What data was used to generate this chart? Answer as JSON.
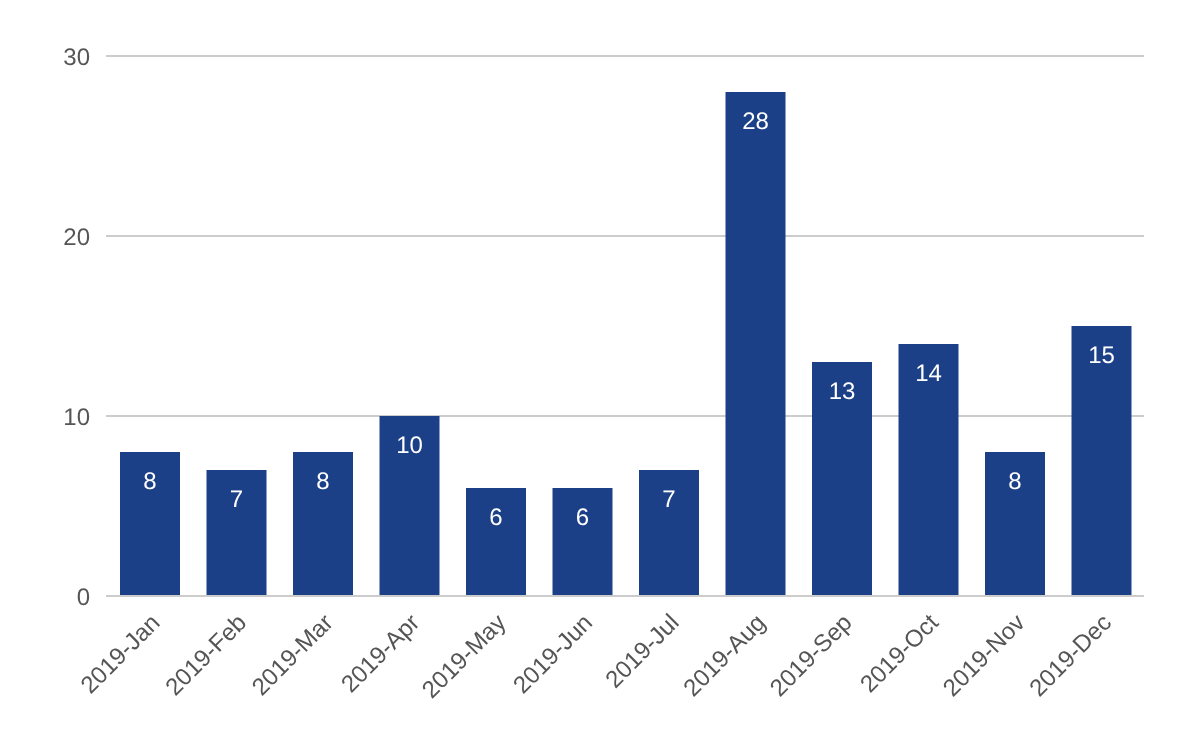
{
  "chart_data": {
    "type": "bar",
    "categories": [
      "2019-Jan",
      "2019-Feb",
      "2019-Mar",
      "2019-Apr",
      "2019-May",
      "2019-Jun",
      "2019-Jul",
      "2019-Aug",
      "2019-Sep",
      "2019-Oct",
      "2019-Nov",
      "2019-Dec"
    ],
    "values": [
      8,
      7,
      8,
      10,
      6,
      6,
      7,
      28,
      13,
      14,
      8,
      15
    ],
    "color": "#1c4087",
    "ylim": [
      0,
      30
    ],
    "yticks": [
      0,
      10,
      20,
      30
    ],
    "grid": "y",
    "data_labels": true
  }
}
